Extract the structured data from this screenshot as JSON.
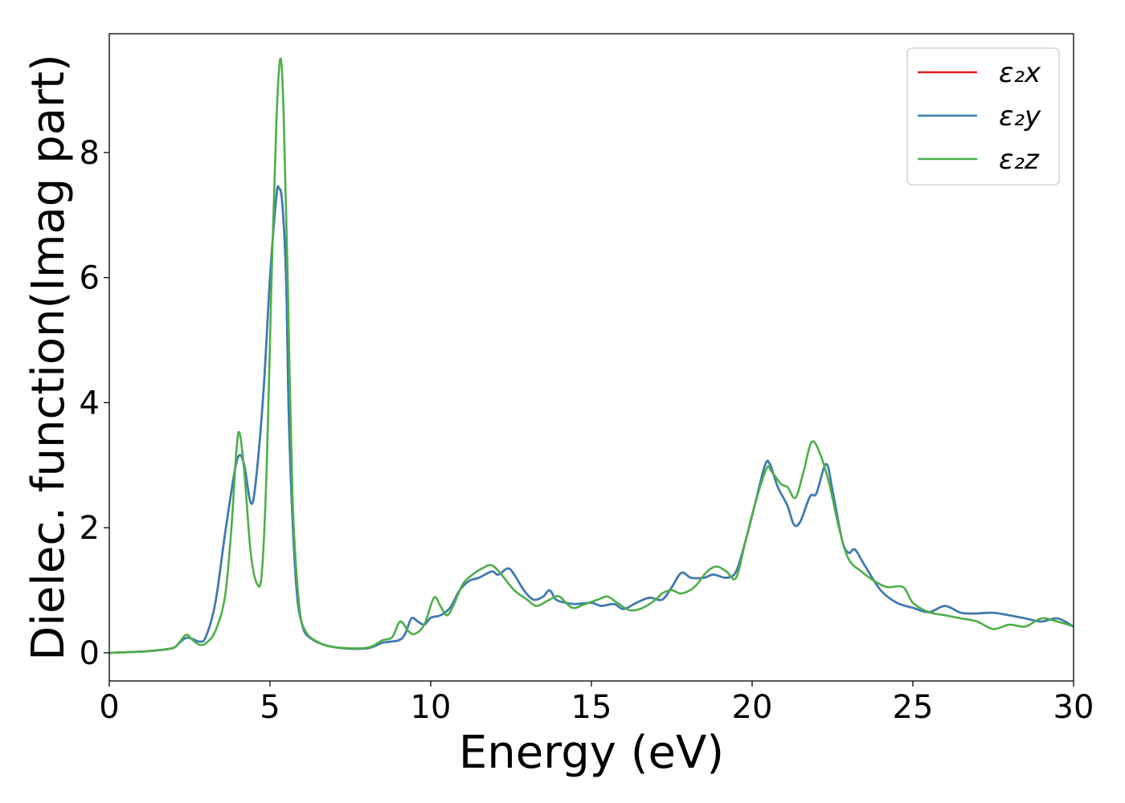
{
  "chart_data": {
    "type": "line",
    "title": "",
    "xlabel": "Energy (eV)",
    "ylabel": "Dielec. function(Imag part)",
    "xlim": [
      0,
      30
    ],
    "ylim": [
      -0.45,
      9.9
    ],
    "xticks": [
      0,
      5,
      10,
      15,
      20,
      25,
      30
    ],
    "yticks": [
      0,
      2,
      4,
      6,
      8
    ],
    "grid": false,
    "legend_position": "top-right",
    "series": [
      {
        "name": "ε₂x",
        "color": "#e41a1c",
        "points": [
          [
            0,
            0
          ],
          [
            1,
            0.02
          ],
          [
            1.5,
            0.04
          ],
          [
            2,
            0.08
          ],
          [
            2.2,
            0.17
          ],
          [
            2.4,
            0.24
          ],
          [
            2.6,
            0.22
          ],
          [
            2.8,
            0.18
          ],
          [
            3,
            0.25
          ],
          [
            3.3,
            0.8
          ],
          [
            3.6,
            1.9
          ],
          [
            3.9,
            2.9
          ],
          [
            4.05,
            3.16
          ],
          [
            4.2,
            3.0
          ],
          [
            4.4,
            2.4
          ],
          [
            4.55,
            2.7
          ],
          [
            4.8,
            4.2
          ],
          [
            5,
            6.0
          ],
          [
            5.2,
            7.3
          ],
          [
            5.28,
            7.43
          ],
          [
            5.38,
            7.2
          ],
          [
            5.5,
            6.0
          ],
          [
            5.6,
            3.5
          ],
          [
            5.8,
            1.2
          ],
          [
            6,
            0.45
          ],
          [
            6.3,
            0.22
          ],
          [
            7,
            0.09
          ],
          [
            8,
            0.07
          ],
          [
            8.5,
            0.16
          ],
          [
            9,
            0.2
          ],
          [
            9.2,
            0.3
          ],
          [
            9.4,
            0.55
          ],
          [
            9.6,
            0.5
          ],
          [
            9.8,
            0.45
          ],
          [
            10,
            0.56
          ],
          [
            10.3,
            0.6
          ],
          [
            10.6,
            0.72
          ],
          [
            10.9,
            1.0
          ],
          [
            11.2,
            1.15
          ],
          [
            11.5,
            1.2
          ],
          [
            11.9,
            1.3
          ],
          [
            12.1,
            1.25
          ],
          [
            12.4,
            1.35
          ],
          [
            12.6,
            1.25
          ],
          [
            12.9,
            1.0
          ],
          [
            13.2,
            0.85
          ],
          [
            13.5,
            0.9
          ],
          [
            13.7,
            1.0
          ],
          [
            13.9,
            0.85
          ],
          [
            14.2,
            0.8
          ],
          [
            14.5,
            0.78
          ],
          [
            15,
            0.8
          ],
          [
            15.3,
            0.75
          ],
          [
            15.7,
            0.78
          ],
          [
            16,
            0.7
          ],
          [
            16.4,
            0.8
          ],
          [
            16.8,
            0.88
          ],
          [
            17.2,
            0.85
          ],
          [
            17.5,
            1.05
          ],
          [
            17.8,
            1.28
          ],
          [
            18.1,
            1.2
          ],
          [
            18.5,
            1.2
          ],
          [
            18.8,
            1.25
          ],
          [
            19.2,
            1.2
          ],
          [
            19.5,
            1.3
          ],
          [
            19.8,
            1.8
          ],
          [
            20.1,
            2.4
          ],
          [
            20.4,
            3.0
          ],
          [
            20.55,
            3.02
          ],
          [
            20.8,
            2.65
          ],
          [
            21.1,
            2.35
          ],
          [
            21.3,
            2.05
          ],
          [
            21.5,
            2.1
          ],
          [
            21.8,
            2.5
          ],
          [
            22,
            2.55
          ],
          [
            22.3,
            3.02
          ],
          [
            22.5,
            2.6
          ],
          [
            22.8,
            1.8
          ],
          [
            23,
            1.6
          ],
          [
            23.2,
            1.65
          ],
          [
            23.5,
            1.4
          ],
          [
            24,
            1.0
          ],
          [
            24.5,
            0.8
          ],
          [
            25,
            0.72
          ],
          [
            25.5,
            0.65
          ],
          [
            26,
            0.75
          ],
          [
            26.5,
            0.64
          ],
          [
            27,
            0.63
          ],
          [
            27.5,
            0.64
          ],
          [
            28,
            0.6
          ],
          [
            28.5,
            0.55
          ],
          [
            29,
            0.5
          ],
          [
            29.5,
            0.55
          ],
          [
            30,
            0.42
          ]
        ]
      },
      {
        "name": "ε₂y",
        "color": "#377eb8",
        "points": [
          [
            0,
            0
          ],
          [
            1,
            0.02
          ],
          [
            1.5,
            0.04
          ],
          [
            2,
            0.08
          ],
          [
            2.2,
            0.17
          ],
          [
            2.4,
            0.24
          ],
          [
            2.6,
            0.22
          ],
          [
            2.8,
            0.18
          ],
          [
            3,
            0.25
          ],
          [
            3.3,
            0.8
          ],
          [
            3.6,
            1.9
          ],
          [
            3.9,
            2.9
          ],
          [
            4.05,
            3.16
          ],
          [
            4.2,
            3.0
          ],
          [
            4.4,
            2.4
          ],
          [
            4.55,
            2.7
          ],
          [
            4.8,
            4.2
          ],
          [
            5,
            6.0
          ],
          [
            5.2,
            7.3
          ],
          [
            5.28,
            7.43
          ],
          [
            5.38,
            7.2
          ],
          [
            5.5,
            6.0
          ],
          [
            5.6,
            3.5
          ],
          [
            5.8,
            1.2
          ],
          [
            6,
            0.45
          ],
          [
            6.3,
            0.22
          ],
          [
            7,
            0.09
          ],
          [
            8,
            0.07
          ],
          [
            8.5,
            0.16
          ],
          [
            9,
            0.2
          ],
          [
            9.2,
            0.3
          ],
          [
            9.4,
            0.55
          ],
          [
            9.6,
            0.5
          ],
          [
            9.8,
            0.45
          ],
          [
            10,
            0.56
          ],
          [
            10.3,
            0.6
          ],
          [
            10.6,
            0.72
          ],
          [
            10.9,
            1.0
          ],
          [
            11.2,
            1.15
          ],
          [
            11.5,
            1.2
          ],
          [
            11.9,
            1.3
          ],
          [
            12.1,
            1.25
          ],
          [
            12.4,
            1.35
          ],
          [
            12.6,
            1.25
          ],
          [
            12.9,
            1.0
          ],
          [
            13.2,
            0.85
          ],
          [
            13.5,
            0.9
          ],
          [
            13.7,
            1.0
          ],
          [
            13.9,
            0.85
          ],
          [
            14.2,
            0.8
          ],
          [
            14.5,
            0.78
          ],
          [
            15,
            0.8
          ],
          [
            15.3,
            0.75
          ],
          [
            15.7,
            0.78
          ],
          [
            16,
            0.7
          ],
          [
            16.4,
            0.8
          ],
          [
            16.8,
            0.88
          ],
          [
            17.2,
            0.85
          ],
          [
            17.5,
            1.05
          ],
          [
            17.8,
            1.28
          ],
          [
            18.1,
            1.2
          ],
          [
            18.5,
            1.2
          ],
          [
            18.8,
            1.25
          ],
          [
            19.2,
            1.2
          ],
          [
            19.5,
            1.3
          ],
          [
            19.8,
            1.8
          ],
          [
            20.1,
            2.4
          ],
          [
            20.4,
            3.0
          ],
          [
            20.55,
            3.02
          ],
          [
            20.8,
            2.65
          ],
          [
            21.1,
            2.35
          ],
          [
            21.3,
            2.05
          ],
          [
            21.5,
            2.1
          ],
          [
            21.8,
            2.5
          ],
          [
            22,
            2.55
          ],
          [
            22.3,
            3.02
          ],
          [
            22.5,
            2.6
          ],
          [
            22.8,
            1.8
          ],
          [
            23,
            1.6
          ],
          [
            23.2,
            1.65
          ],
          [
            23.5,
            1.4
          ],
          [
            24,
            1.0
          ],
          [
            24.5,
            0.8
          ],
          [
            25,
            0.72
          ],
          [
            25.5,
            0.65
          ],
          [
            26,
            0.75
          ],
          [
            26.5,
            0.64
          ],
          [
            27,
            0.63
          ],
          [
            27.5,
            0.64
          ],
          [
            28,
            0.6
          ],
          [
            28.5,
            0.55
          ],
          [
            29,
            0.5
          ],
          [
            29.5,
            0.55
          ],
          [
            30,
            0.42
          ]
        ]
      },
      {
        "name": "ε₂z",
        "color": "#4daf4a",
        "points": [
          [
            0,
            0
          ],
          [
            1,
            0.02
          ],
          [
            1.5,
            0.04
          ],
          [
            2,
            0.08
          ],
          [
            2.2,
            0.18
          ],
          [
            2.4,
            0.29
          ],
          [
            2.6,
            0.2
          ],
          [
            2.8,
            0.13
          ],
          [
            3,
            0.15
          ],
          [
            3.3,
            0.35
          ],
          [
            3.6,
            0.9
          ],
          [
            3.8,
            2.0
          ],
          [
            3.95,
            3.2
          ],
          [
            4.05,
            3.52
          ],
          [
            4.2,
            2.9
          ],
          [
            4.4,
            1.6
          ],
          [
            4.6,
            1.1
          ],
          [
            4.75,
            1.3
          ],
          [
            4.9,
            3.0
          ],
          [
            5.05,
            6.0
          ],
          [
            5.2,
            8.5
          ],
          [
            5.32,
            9.5
          ],
          [
            5.42,
            8.7
          ],
          [
            5.55,
            6.0
          ],
          [
            5.7,
            2.5
          ],
          [
            5.9,
            0.8
          ],
          [
            6.1,
            0.35
          ],
          [
            6.5,
            0.17
          ],
          [
            7,
            0.09
          ],
          [
            8,
            0.08
          ],
          [
            8.5,
            0.2
          ],
          [
            8.8,
            0.25
          ],
          [
            9.05,
            0.5
          ],
          [
            9.3,
            0.35
          ],
          [
            9.5,
            0.3
          ],
          [
            9.8,
            0.45
          ],
          [
            10.1,
            0.88
          ],
          [
            10.3,
            0.75
          ],
          [
            10.5,
            0.6
          ],
          [
            10.7,
            0.75
          ],
          [
            11,
            1.1
          ],
          [
            11.3,
            1.25
          ],
          [
            11.6,
            1.35
          ],
          [
            11.9,
            1.4
          ],
          [
            12.2,
            1.25
          ],
          [
            12.6,
            1.0
          ],
          [
            13,
            0.85
          ],
          [
            13.3,
            0.75
          ],
          [
            13.7,
            0.85
          ],
          [
            14,
            0.9
          ],
          [
            14.4,
            0.72
          ],
          [
            14.8,
            0.78
          ],
          [
            15.2,
            0.85
          ],
          [
            15.5,
            0.9
          ],
          [
            15.8,
            0.8
          ],
          [
            16.2,
            0.68
          ],
          [
            16.6,
            0.72
          ],
          [
            17,
            0.85
          ],
          [
            17.2,
            0.95
          ],
          [
            17.5,
            1.0
          ],
          [
            17.8,
            0.95
          ],
          [
            18.2,
            1.05
          ],
          [
            18.6,
            1.3
          ],
          [
            18.9,
            1.38
          ],
          [
            19.2,
            1.3
          ],
          [
            19.5,
            1.2
          ],
          [
            19.8,
            1.8
          ],
          [
            20.1,
            2.4
          ],
          [
            20.45,
            2.95
          ],
          [
            20.6,
            2.9
          ],
          [
            20.9,
            2.7
          ],
          [
            21.1,
            2.65
          ],
          [
            21.35,
            2.48
          ],
          [
            21.6,
            2.9
          ],
          [
            21.85,
            3.37
          ],
          [
            22.1,
            3.2
          ],
          [
            22.4,
            2.7
          ],
          [
            22.7,
            2.0
          ],
          [
            23,
            1.5
          ],
          [
            23.4,
            1.3
          ],
          [
            23.8,
            1.15
          ],
          [
            24.2,
            1.05
          ],
          [
            24.7,
            1.05
          ],
          [
            25,
            0.8
          ],
          [
            25.5,
            0.65
          ],
          [
            26,
            0.6
          ],
          [
            26.5,
            0.55
          ],
          [
            27,
            0.5
          ],
          [
            27.5,
            0.38
          ],
          [
            28,
            0.45
          ],
          [
            28.5,
            0.42
          ],
          [
            29,
            0.55
          ],
          [
            29.5,
            0.5
          ],
          [
            30,
            0.42
          ]
        ]
      }
    ]
  }
}
